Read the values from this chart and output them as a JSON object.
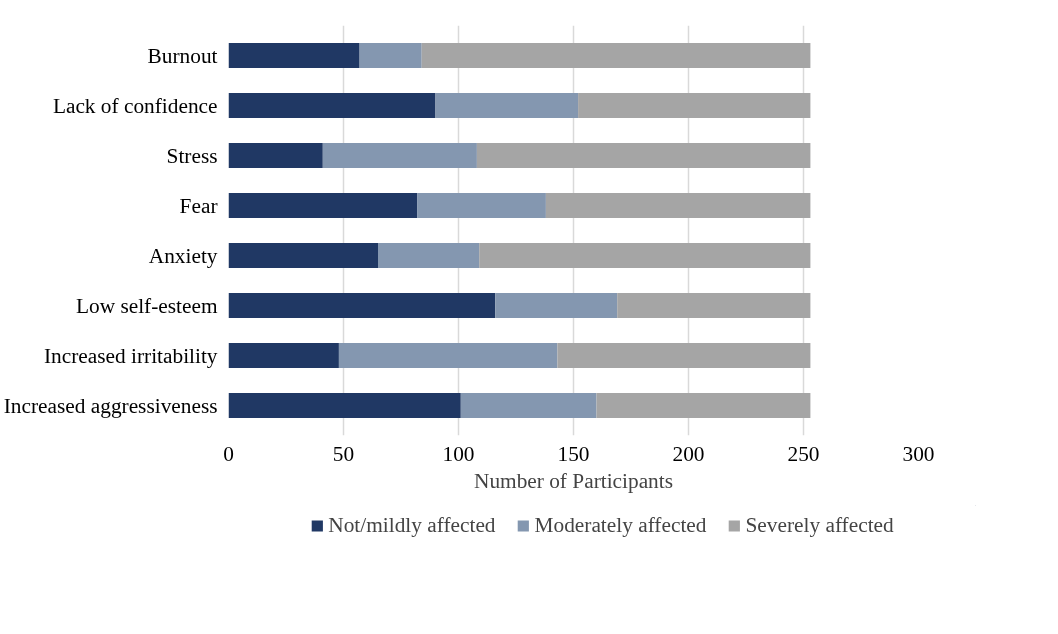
{
  "chart_data": {
    "type": "bar",
    "orientation": "horizontal",
    "stacked": true,
    "categories": [
      "Burnout",
      "Lack of confidence",
      "Stress",
      "Fear",
      "Anxiety",
      "Low self-esteem",
      "Increased irritability",
      "Increased aggressiveness"
    ],
    "series": [
      {
        "name": "Not/mildly affected",
        "color": "#203864",
        "values": [
          57,
          90,
          41,
          82,
          65,
          116,
          48,
          101
        ]
      },
      {
        "name": "Moderately affected",
        "color": "#8497b0",
        "values": [
          27,
          62,
          67,
          56,
          44,
          53,
          95,
          59
        ]
      },
      {
        "name": "Severely affected",
        "color": "#a5a5a5",
        "values": [
          169,
          101,
          145,
          115,
          144,
          84,
          110,
          93
        ]
      }
    ],
    "xlabel": "Number of Participants",
    "xlim": [
      0,
      300
    ],
    "xticks": [
      0,
      50,
      100,
      150,
      200,
      250,
      300
    ],
    "grid": "x",
    "legend": "bottom"
  }
}
